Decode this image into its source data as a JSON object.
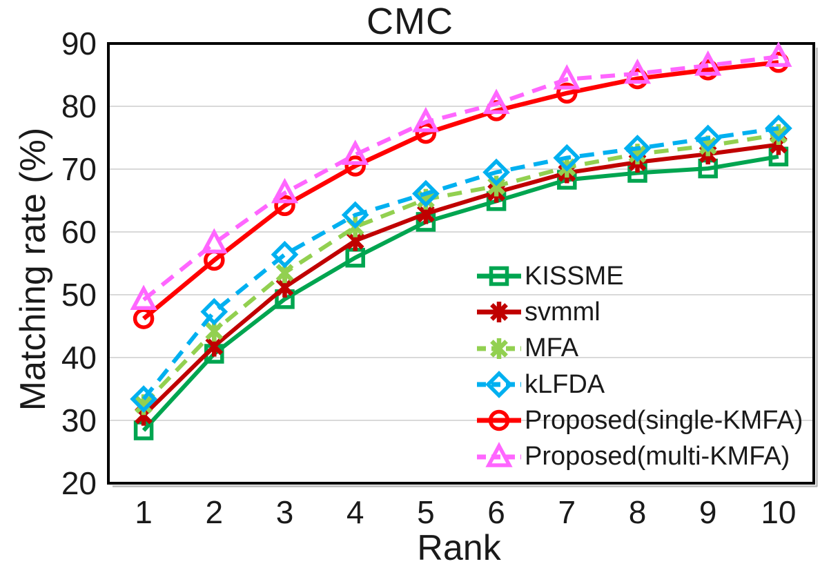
{
  "page": {
    "background": "#FFFFFF"
  },
  "chart_data": {
    "type": "line",
    "title": "CMC",
    "xlabel": "Rank",
    "ylabel": "Matching rate (%)",
    "x": [
      1,
      2,
      3,
      4,
      5,
      6,
      7,
      8,
      9,
      10
    ],
    "x_ticks": [
      1,
      2,
      3,
      4,
      5,
      6,
      7,
      8,
      9,
      10
    ],
    "y_ticks": [
      20,
      30,
      40,
      50,
      60,
      70,
      80,
      90
    ],
    "xlim": [
      0.5,
      10.5
    ],
    "ylim": [
      20,
      90
    ],
    "grid": "horizontal-only",
    "gridline_color": "#D9D9D9",
    "frame_color": "#000000",
    "text_color": "#1A1A1A",
    "legend_position": "inside-lower-right",
    "series": [
      {
        "name": "KISSME",
        "id": "kissme",
        "color": "#00A550",
        "line_style": "solid",
        "marker": "square",
        "values": [
          28.4,
          40.6,
          49.3,
          55.9,
          61.6,
          64.9,
          68.3,
          69.4,
          70.1,
          72.0
        ]
      },
      {
        "name": "svmml",
        "id": "svmml",
        "color": "#C00000",
        "line_style": "solid",
        "marker": "asterisk",
        "values": [
          30.8,
          41.8,
          51.2,
          58.6,
          62.9,
          66.3,
          69.4,
          71.1,
          72.4,
          73.9
        ]
      },
      {
        "name": "MFA",
        "id": "mfa",
        "color": "#92D050",
        "line_style": "dashed",
        "marker": "asterisk",
        "values": [
          32.5,
          44.2,
          53.5,
          60.8,
          65.2,
          67.3,
          70.3,
          72.4,
          73.7,
          75.5
        ]
      },
      {
        "name": "kLFDA",
        "id": "klfda",
        "color": "#00B0F0",
        "line_style": "dashed",
        "marker": "diamond",
        "values": [
          33.4,
          47.3,
          56.4,
          62.7,
          66.1,
          69.5,
          71.8,
          73.3,
          74.9,
          76.5
        ]
      },
      {
        "name": "Proposed(single-KMFA)",
        "id": "proposed-single-kmfa",
        "color": "#FF0000",
        "line_style": "solid",
        "marker": "circle",
        "values": [
          46.2,
          55.5,
          64.2,
          70.5,
          75.7,
          79.3,
          82.1,
          84.4,
          85.8,
          87.0
        ]
      },
      {
        "name": "Proposed(multi-KMFA)",
        "id": "proposed-multi-kmfa",
        "color": "#FF66FF",
        "line_style": "dashed",
        "marker": "triangle",
        "values": [
          49.2,
          58.2,
          66.2,
          72.3,
          77.5,
          80.4,
          84.3,
          85.2,
          86.5,
          87.9
        ]
      }
    ]
  }
}
